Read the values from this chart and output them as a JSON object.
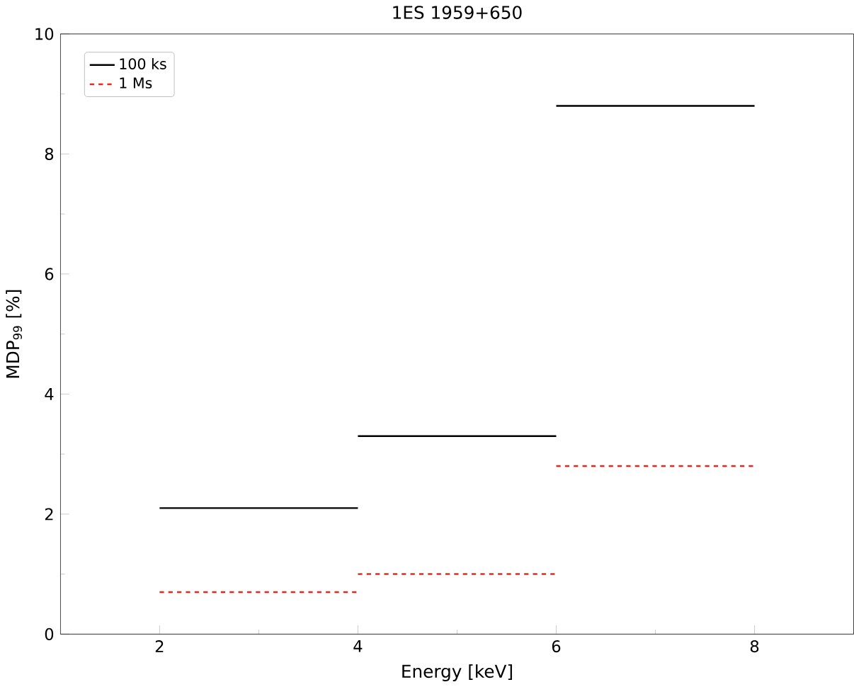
{
  "chart_data": {
    "type": "line",
    "title": "1ES 1959+650",
    "xlabel": "Energy [keV]",
    "ylabel": "MDP$_{99}$ [%]",
    "xlim": [
      1,
      9
    ],
    "ylim": [
      0,
      10
    ],
    "xticks": [
      2,
      4,
      6,
      8
    ],
    "yticks": [
      0,
      2,
      4,
      6,
      8,
      10
    ],
    "legend": "top left",
    "grid": false,
    "marker": "none",
    "series": [
      {
        "name": "100 ks",
        "color": "#000000",
        "line_style": "solid",
        "x": [
          2,
          4
        ],
        "values": [
          2.1,
          2.1
        ]
      },
      {
        "color": "#000000",
        "line_style": "solid",
        "x": [
          4,
          6
        ],
        "values": [
          3.3,
          3.3
        ]
      },
      {
        "color": "#000000",
        "line_style": "solid",
        "x": [
          6,
          8
        ],
        "values": [
          8.8,
          8.8
        ]
      },
      {
        "name": "1 Ms",
        "color": "#e8281e",
        "line_style": "dashed",
        "x": [
          2,
          4
        ],
        "values": [
          0.7,
          0.7
        ]
      },
      {
        "color": "#e8281e",
        "line_style": "dashed",
        "x": [
          4,
          6
        ],
        "values": [
          1.0,
          1.0
        ]
      },
      {
        "color": "#e8281e",
        "line_style": "dashed",
        "x": [
          6,
          8
        ],
        "values": [
          2.8,
          2.8
        ]
      }
    ]
  }
}
